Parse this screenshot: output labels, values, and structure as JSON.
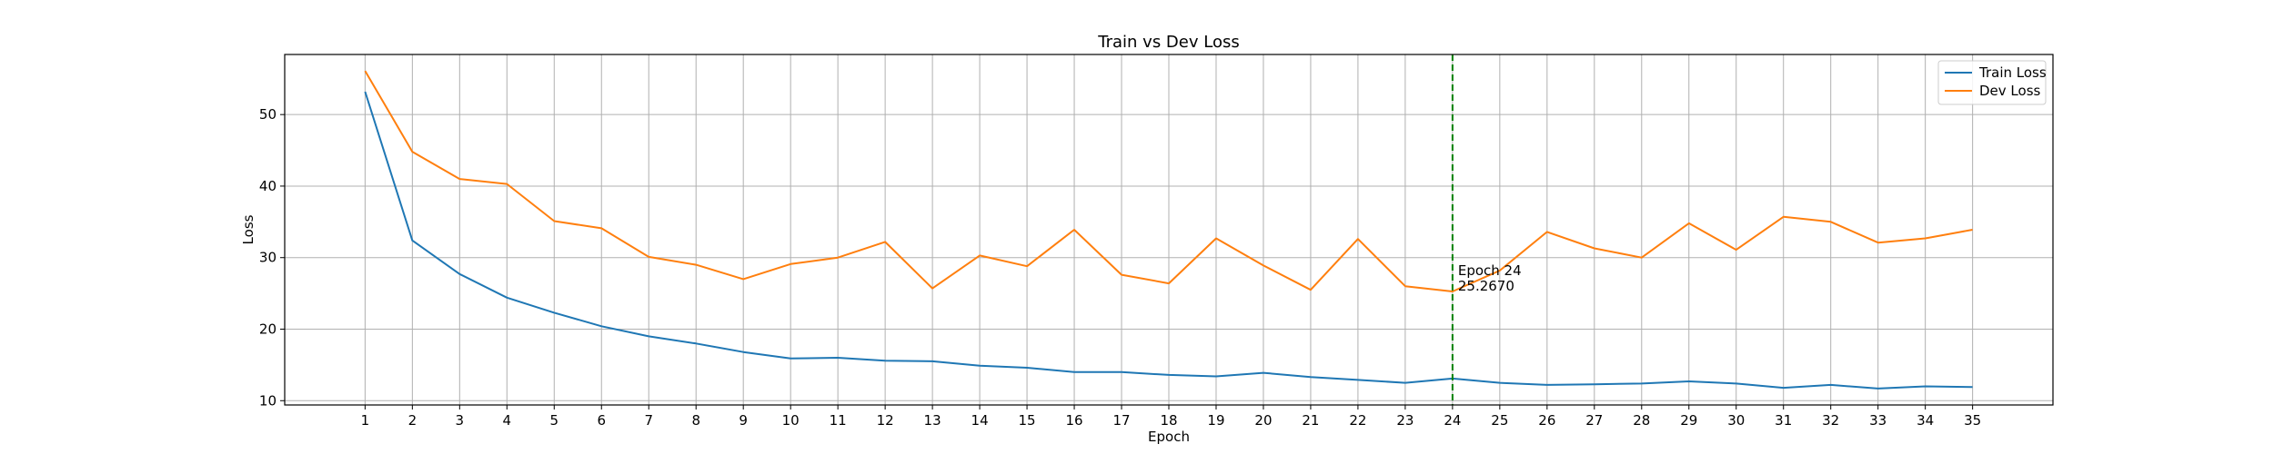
{
  "chart_data": {
    "type": "line",
    "title": "Train vs Dev Loss",
    "xlabel": "Epoch",
    "ylabel": "Loss",
    "x": [
      1,
      2,
      3,
      4,
      5,
      6,
      7,
      8,
      9,
      10,
      11,
      12,
      13,
      14,
      15,
      16,
      17,
      18,
      19,
      20,
      21,
      22,
      23,
      24,
      25,
      26,
      27,
      28,
      29,
      30,
      31,
      32,
      33,
      34,
      35
    ],
    "xlim": [
      -0.7,
      36.7
    ],
    "ylim": [
      9.4,
      58.4
    ],
    "yticks": [
      10,
      20,
      30,
      40,
      50
    ],
    "grid": true,
    "legend_position": "top-right",
    "series": [
      {
        "name": "Train Loss",
        "color": "#1f77b4",
        "values": [
          53.2,
          32.4,
          27.7,
          24.4,
          22.3,
          20.4,
          19.0,
          18.0,
          16.8,
          15.9,
          16.0,
          15.6,
          15.5,
          14.9,
          14.6,
          14.0,
          14.0,
          13.6,
          13.4,
          13.9,
          13.3,
          12.9,
          12.5,
          13.1,
          12.5,
          12.2,
          12.3,
          12.4,
          12.7,
          12.4,
          11.8,
          12.2,
          11.7,
          12.0,
          11.9
        ]
      },
      {
        "name": "Dev Loss",
        "color": "#ff7f0e",
        "values": [
          56.1,
          44.8,
          41.0,
          40.3,
          35.1,
          34.1,
          30.1,
          29.0,
          27.0,
          29.1,
          30.0,
          32.2,
          25.7,
          30.3,
          28.8,
          33.9,
          27.6,
          26.4,
          32.7,
          28.9,
          25.5,
          32.6,
          26.0,
          25.267,
          28.2,
          33.6,
          31.3,
          30.0,
          34.8,
          31.1,
          35.7,
          35.0,
          32.1,
          32.7,
          33.9
        ]
      }
    ],
    "vline": {
      "x": 24,
      "color": "#008000",
      "label_line1": "Epoch 24",
      "label_line2": "25.2670"
    }
  }
}
